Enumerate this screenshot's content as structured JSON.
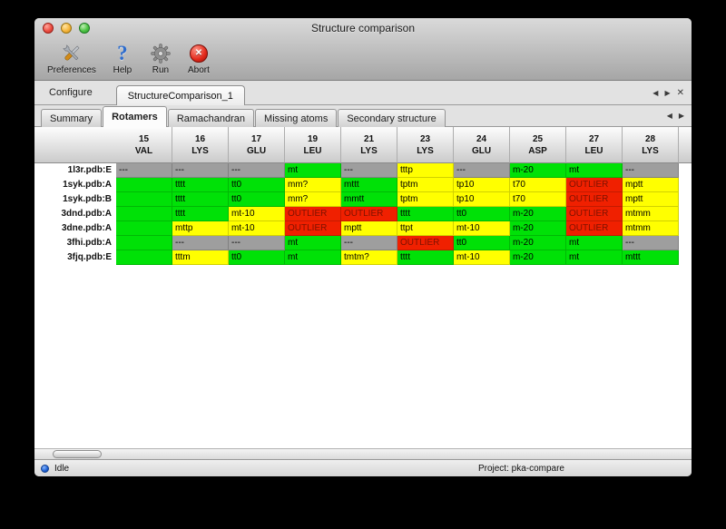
{
  "window": {
    "title": "Structure comparison"
  },
  "toolbar": {
    "buttons": [
      {
        "label": "Preferences",
        "icon": "preferences-tools-icon"
      },
      {
        "label": "Help",
        "icon": "help-question-icon"
      },
      {
        "label": "Run",
        "icon": "run-gear-icon"
      },
      {
        "label": "Abort",
        "icon": "abort-icon"
      }
    ]
  },
  "configure": {
    "label": "Configure",
    "tab_label": "StructureComparison_1"
  },
  "icons": {
    "prev": "◀",
    "next": "▶",
    "close": "✕"
  },
  "view_tabs": {
    "items": [
      "Summary",
      "Rotamers",
      "Ramachandran",
      "Missing atoms",
      "Secondary structure"
    ],
    "active": "Rotamers"
  },
  "table": {
    "columns": [
      {
        "num": "15",
        "res": "VAL"
      },
      {
        "num": "16",
        "res": "LYS"
      },
      {
        "num": "17",
        "res": "GLU"
      },
      {
        "num": "19",
        "res": "LEU"
      },
      {
        "num": "21",
        "res": "LYS"
      },
      {
        "num": "23",
        "res": "LYS"
      },
      {
        "num": "24",
        "res": "GLU"
      },
      {
        "num": "25",
        "res": "ASP"
      },
      {
        "num": "27",
        "res": "LEU"
      },
      {
        "num": "28",
        "res": "LYS"
      }
    ],
    "rows": [
      {
        "name": "1l3r.pdb:E",
        "cells": [
          {
            "text": "---",
            "color": "gray"
          },
          {
            "text": "---",
            "color": "gray"
          },
          {
            "text": "---",
            "color": "gray"
          },
          {
            "text": "mt",
            "color": "green"
          },
          {
            "text": "---",
            "color": "gray"
          },
          {
            "text": "tttp",
            "color": "yellow"
          },
          {
            "text": "---",
            "color": "gray"
          },
          {
            "text": "m-20",
            "color": "green"
          },
          {
            "text": "mt",
            "color": "green"
          },
          {
            "text": "---",
            "color": "gray"
          }
        ]
      },
      {
        "name": "1syk.pdb:A",
        "cells": [
          {
            "text": "",
            "color": "green"
          },
          {
            "text": "tttt",
            "color": "green"
          },
          {
            "text": "tt0",
            "color": "green"
          },
          {
            "text": "mm?",
            "color": "yellow"
          },
          {
            "text": "mttt",
            "color": "green"
          },
          {
            "text": "tptm",
            "color": "yellow"
          },
          {
            "text": "tp10",
            "color": "yellow"
          },
          {
            "text": "t70",
            "color": "yellow"
          },
          {
            "text": "OUTLIER",
            "color": "red"
          },
          {
            "text": "mptt",
            "color": "yellow"
          }
        ]
      },
      {
        "name": "1syk.pdb:B",
        "cells": [
          {
            "text": "",
            "color": "green"
          },
          {
            "text": "tttt",
            "color": "green"
          },
          {
            "text": "tt0",
            "color": "green"
          },
          {
            "text": "mm?",
            "color": "yellow"
          },
          {
            "text": "mmtt",
            "color": "green"
          },
          {
            "text": "tptm",
            "color": "yellow"
          },
          {
            "text": "tp10",
            "color": "yellow"
          },
          {
            "text": "t70",
            "color": "yellow"
          },
          {
            "text": "OUTLIER",
            "color": "red"
          },
          {
            "text": "mptt",
            "color": "yellow"
          }
        ]
      },
      {
        "name": "3dnd.pdb:A",
        "cells": [
          {
            "text": "",
            "color": "green"
          },
          {
            "text": "tttt",
            "color": "green"
          },
          {
            "text": "mt-10",
            "color": "yellow"
          },
          {
            "text": "OUTLIER",
            "color": "red"
          },
          {
            "text": "OUTLIER",
            "color": "red"
          },
          {
            "text": "tttt",
            "color": "green"
          },
          {
            "text": "tt0",
            "color": "green"
          },
          {
            "text": "m-20",
            "color": "green"
          },
          {
            "text": "OUTLIER",
            "color": "red"
          },
          {
            "text": "mtmm",
            "color": "yellow"
          }
        ]
      },
      {
        "name": "3dne.pdb:A",
        "cells": [
          {
            "text": "",
            "color": "green"
          },
          {
            "text": "mttp",
            "color": "yellow"
          },
          {
            "text": "mt-10",
            "color": "yellow"
          },
          {
            "text": "OUTLIER",
            "color": "red"
          },
          {
            "text": "mptt",
            "color": "yellow"
          },
          {
            "text": "ttpt",
            "color": "yellow"
          },
          {
            "text": "mt-10",
            "color": "yellow"
          },
          {
            "text": "m-20",
            "color": "green"
          },
          {
            "text": "OUTLIER",
            "color": "red"
          },
          {
            "text": "mtmm",
            "color": "yellow"
          }
        ]
      },
      {
        "name": "3fhi.pdb:A",
        "cells": [
          {
            "text": "",
            "color": "green"
          },
          {
            "text": "---",
            "color": "gray"
          },
          {
            "text": "---",
            "color": "gray"
          },
          {
            "text": "mt",
            "color": "green"
          },
          {
            "text": "---",
            "color": "gray"
          },
          {
            "text": "OUTLIER",
            "color": "red"
          },
          {
            "text": "tt0",
            "color": "green"
          },
          {
            "text": "m-20",
            "color": "green"
          },
          {
            "text": "mt",
            "color": "green"
          },
          {
            "text": "---",
            "color": "gray"
          }
        ]
      },
      {
        "name": "3fjq.pdb:E",
        "cells": [
          {
            "text": "",
            "color": "green"
          },
          {
            "text": "tttm",
            "color": "yellow"
          },
          {
            "text": "tt0",
            "color": "green"
          },
          {
            "text": "mt",
            "color": "green"
          },
          {
            "text": "tmtm?",
            "color": "yellow"
          },
          {
            "text": "tttt",
            "color": "green"
          },
          {
            "text": "mt-10",
            "color": "yellow"
          },
          {
            "text": "m-20",
            "color": "green"
          },
          {
            "text": "mt",
            "color": "green"
          },
          {
            "text": "mttt",
            "color": "green"
          }
        ]
      }
    ]
  },
  "statusbar": {
    "status": "Idle",
    "project": "Project: pka-compare"
  },
  "colors": {
    "green": "#00e107",
    "yellow": "#ffff00",
    "red": "#f02000",
    "gray": "#9e9e9e",
    "outlier_text": "#7e1200"
  }
}
